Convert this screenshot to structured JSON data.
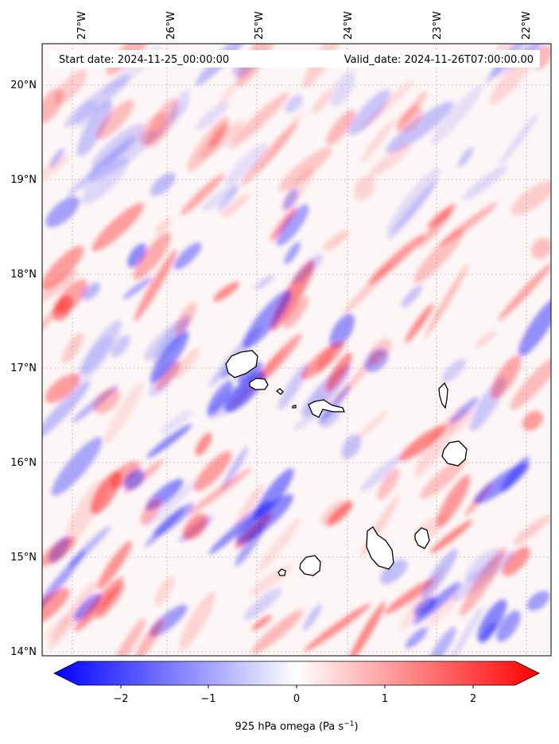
{
  "map": {
    "start_label": "Start date: 2024-11-25_00:00:00",
    "valid_label": "Valid_date: 2024-11-26T07:00:00.00",
    "lon_ticks": [
      "27°W",
      "26°W",
      "25°W",
      "24°W",
      "23°W",
      "22°W"
    ],
    "lat_ticks": [
      "20°N",
      "19°N",
      "18°N",
      "17°N",
      "16°N",
      "15°N",
      "14°N"
    ],
    "colorbar": {
      "ticks": [
        "−2",
        "−1",
        "0",
        "1",
        "2"
      ],
      "label": "925 hPa omega (Pa s",
      "label_sup": "−1",
      "label_close": ")"
    },
    "colors": {
      "negative": "#0000ff",
      "neutral": "#ffffff",
      "positive": "#ff0000",
      "coast": "#000000"
    }
  }
}
